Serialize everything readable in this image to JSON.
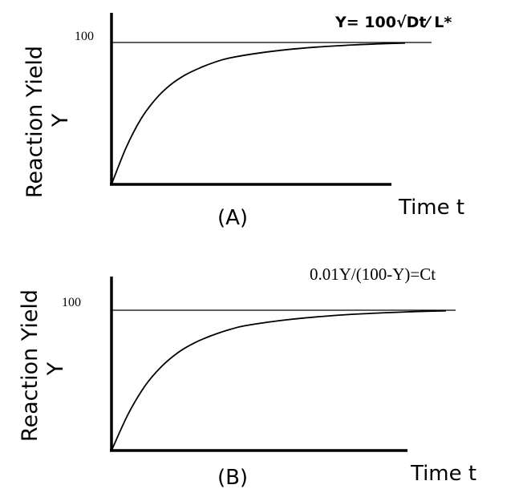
{
  "colors": {
    "ink": "#000000",
    "background": "#ffffff"
  },
  "chart_data": [
    {
      "type": "line",
      "panel_label": "(A)",
      "formula": "Y= 100√Dt⁄ L*",
      "xlabel": "Time t",
      "ylabel": "Reaction Yield",
      "ylabel_symbol": "Y",
      "ylim": [
        0,
        100
      ],
      "xlim": [
        0,
        10
      ],
      "yticks": [
        {
          "value": 100,
          "label": "100"
        }
      ],
      "reference_lines": [
        {
          "axis": "y",
          "value": 100
        }
      ],
      "series": [
        {
          "x": [
            0,
            0.5,
            1,
            1.5,
            2,
            2.5,
            3,
            3.5,
            4,
            5,
            6,
            7,
            8,
            9,
            10
          ],
          "y": [
            0,
            26,
            46,
            60,
            70,
            77,
            82,
            86,
            89,
            92.5,
            95,
            96.8,
            98,
            99,
            99.6
          ]
        }
      ]
    },
    {
      "type": "line",
      "panel_label": "(B)",
      "formula": "0.01Y/(100-Y)=Ct",
      "xlabel": "Time t",
      "ylabel": "Reaction Yield",
      "ylabel_symbol": "Y",
      "ylim": [
        0,
        100
      ],
      "xlim": [
        0,
        10
      ],
      "yticks": [
        {
          "value": 100,
          "label": "100"
        }
      ],
      "reference_lines": [
        {
          "axis": "y",
          "value": 100
        }
      ],
      "series": [
        {
          "x": [
            0,
            0.5,
            1,
            1.5,
            2,
            2.5,
            3,
            3.5,
            4,
            5,
            6,
            7,
            8,
            9,
            10
          ],
          "y": [
            0,
            26,
            46,
            60,
            70,
            77,
            82,
            86,
            89,
            92.5,
            95,
            96.8,
            98,
            99,
            99.6
          ]
        }
      ]
    }
  ]
}
